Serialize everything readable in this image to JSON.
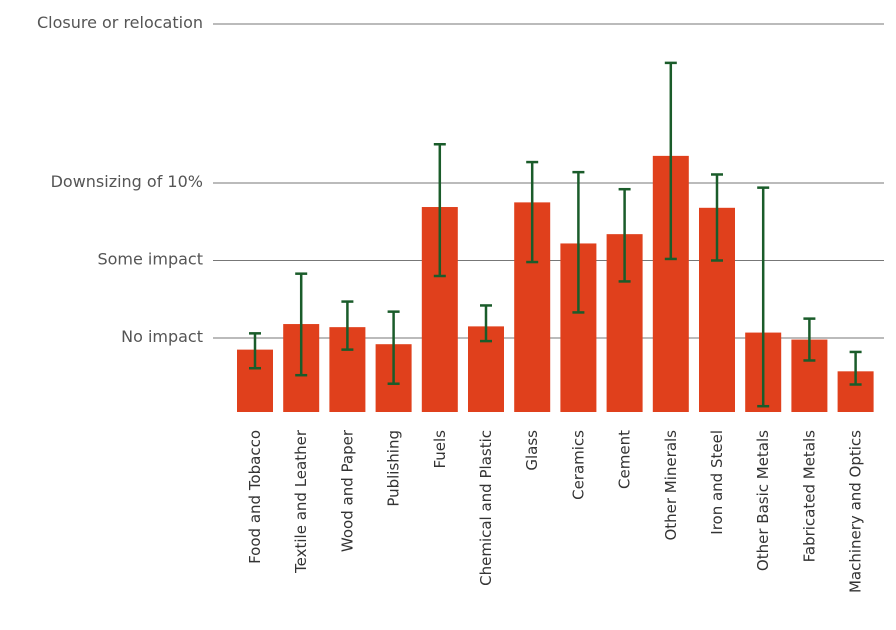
{
  "chart_data": {
    "type": "bar",
    "y_axis": {
      "type": "categorical-levels",
      "levels": [
        {
          "label": "No impact",
          "value": 1
        },
        {
          "label": "Some impact",
          "value": 2
        },
        {
          "label": "Downsizing of 10%",
          "value": 3
        },
        {
          "label": "Closure or relocation",
          "value": 5
        }
      ],
      "ylim": [
        -0.7,
        5
      ]
    },
    "categories": [
      "Food and Tobacco",
      "Textile and Leather",
      "Wood and Paper",
      "Publishing",
      "Fuels",
      "Chemical and Plastic",
      "Glass",
      "Ceramics",
      "Cement",
      "Other Minerals",
      "Iron and Steel",
      "Other Basic Metals",
      "Fabricated Metals",
      "Machinery and Optics"
    ],
    "values": [
      0.85,
      1.18,
      1.14,
      0.92,
      2.69,
      1.15,
      2.75,
      2.22,
      2.34,
      3.35,
      2.68,
      1.07,
      0.98,
      0.57
    ],
    "error_low": [
      0.61,
      0.52,
      0.85,
      0.41,
      1.8,
      0.96,
      1.98,
      1.33,
      1.73,
      2.02,
      2.0,
      0.12,
      0.71,
      0.4
    ],
    "error_high": [
      1.06,
      1.83,
      1.47,
      1.34,
      3.5,
      1.42,
      3.27,
      3.14,
      2.92,
      4.55,
      3.11,
      2.94,
      1.25,
      0.82
    ],
    "bar_color": "#e0401c",
    "error_color": "#1a5c2a",
    "grid": true,
    "legend": "none"
  }
}
